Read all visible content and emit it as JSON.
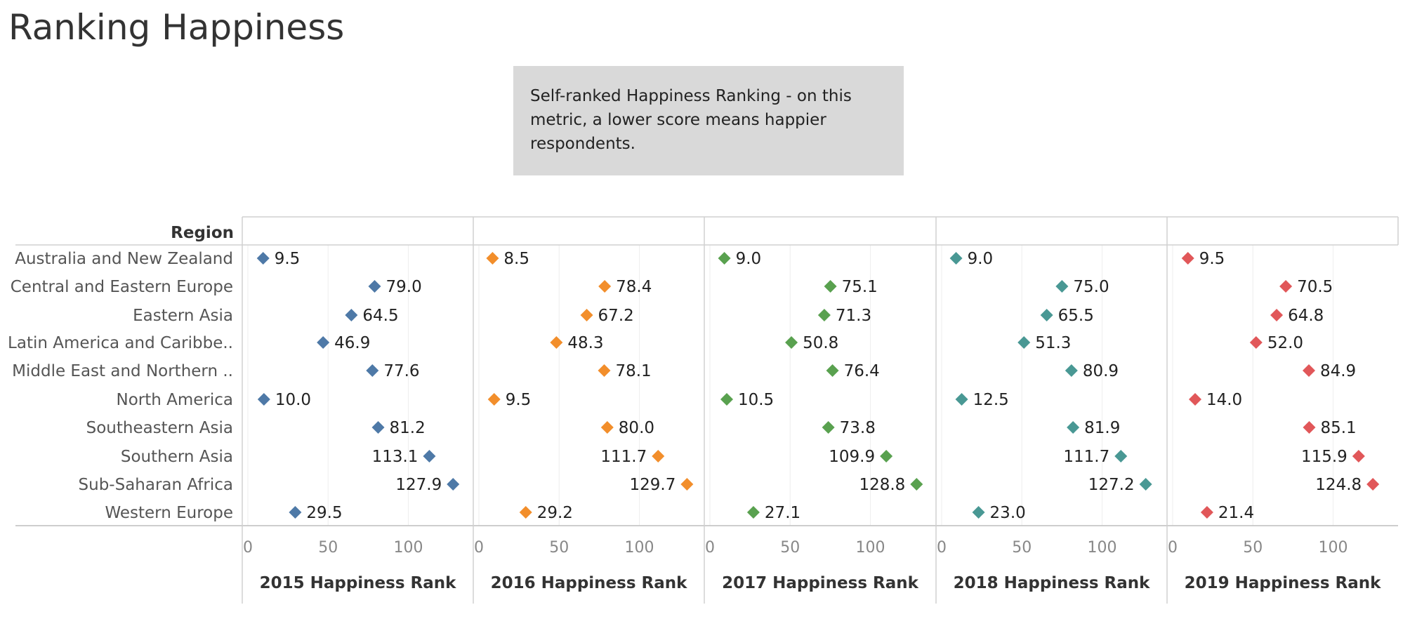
{
  "title": "Ranking Happiness",
  "note": {
    "lines": [
      "Self-ranked Happiness Ranking - on this",
      "metric, a lower score means happier",
      "respondents."
    ]
  },
  "chart_data": {
    "type": "scatter",
    "row_header": "Region",
    "categories": [
      "Australia and New Zealand",
      "Central and Eastern Europe",
      "Eastern Asia",
      "Latin America and Caribbe..",
      "Middle East and Northern ..",
      "North America",
      "Southeastern Asia",
      "Southern Asia",
      "Sub-Saharan Africa",
      "Western Europe"
    ],
    "xlim": [
      0,
      150
    ],
    "xticks": [
      0,
      50,
      100
    ],
    "grid": true,
    "series": [
      {
        "name": "2015 Happiness Rank",
        "color": "#4e79a7",
        "values": [
          9.5,
          79.0,
          64.5,
          46.9,
          77.6,
          10.0,
          81.2,
          113.1,
          127.9,
          29.5
        ]
      },
      {
        "name": "2016 Happiness Rank",
        "color": "#f28e2b",
        "values": [
          8.5,
          78.4,
          67.2,
          48.3,
          78.1,
          9.5,
          80.0,
          111.7,
          129.7,
          29.2
        ]
      },
      {
        "name": "2017 Happiness Rank",
        "color": "#59a14f",
        "values": [
          9.0,
          75.1,
          71.3,
          50.8,
          76.4,
          10.5,
          73.8,
          109.9,
          128.8,
          27.1
        ]
      },
      {
        "name": "2018 Happiness Rank",
        "color": "#499894",
        "values": [
          9.0,
          75.0,
          65.5,
          51.3,
          80.9,
          12.5,
          81.9,
          111.7,
          127.2,
          23.0
        ]
      },
      {
        "name": "2019 Happiness Rank",
        "color": "#e15759",
        "values": [
          9.5,
          70.5,
          64.8,
          52.0,
          84.9,
          14.0,
          85.1,
          115.9,
          124.8,
          21.4
        ]
      }
    ]
  }
}
